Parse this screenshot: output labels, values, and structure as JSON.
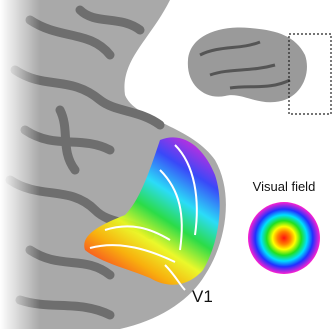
{
  "labels": {
    "visual_field": "Visual field",
    "area": "V1"
  }
}
